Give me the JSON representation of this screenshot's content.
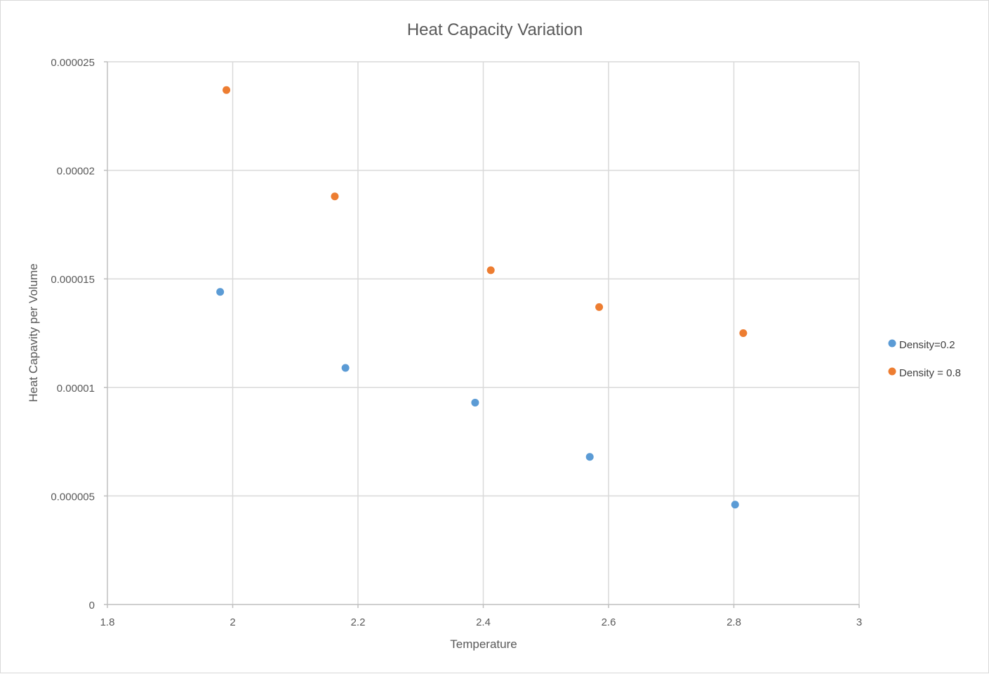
{
  "chart_data": {
    "type": "scatter",
    "title": "Heat Capacity Variation",
    "xlabel": "Temperature",
    "ylabel": "Heat Capavity per Volume",
    "xlim": [
      1.8,
      3
    ],
    "ylim": [
      0,
      2.5e-05
    ],
    "x_ticks": [
      "1.8",
      "2",
      "2.2",
      "2.4",
      "2.6",
      "2.8",
      "3"
    ],
    "y_ticks": [
      "0",
      "0.000005",
      "0.00001",
      "0.000015",
      "0.00002",
      "0.000025"
    ],
    "x_tick_values": [
      1.8,
      2.0,
      2.2,
      2.4,
      2.6,
      2.8,
      3.0
    ],
    "y_tick_values": [
      0,
      5e-06,
      1e-05,
      1.5e-05,
      2e-05,
      2.5e-05
    ],
    "grid": true,
    "legend_position": "right",
    "series": [
      {
        "name": "Density=0.2",
        "color": "#5b9bd5",
        "points": [
          {
            "x": 1.98,
            "y": 1.44e-05
          },
          {
            "x": 2.18,
            "y": 1.09e-05
          },
          {
            "x": 2.387,
            "y": 9.3e-06
          },
          {
            "x": 2.57,
            "y": 6.8e-06
          },
          {
            "x": 2.802,
            "y": 4.6e-06
          }
        ]
      },
      {
        "name": "Density = 0.8",
        "color": "#ed7d31",
        "points": [
          {
            "x": 1.99,
            "y": 2.37e-05
          },
          {
            "x": 2.163,
            "y": 1.88e-05
          },
          {
            "x": 2.412,
            "y": 1.54e-05
          },
          {
            "x": 2.585,
            "y": 1.37e-05
          },
          {
            "x": 2.815,
            "y": 1.25e-05
          }
        ]
      }
    ]
  }
}
